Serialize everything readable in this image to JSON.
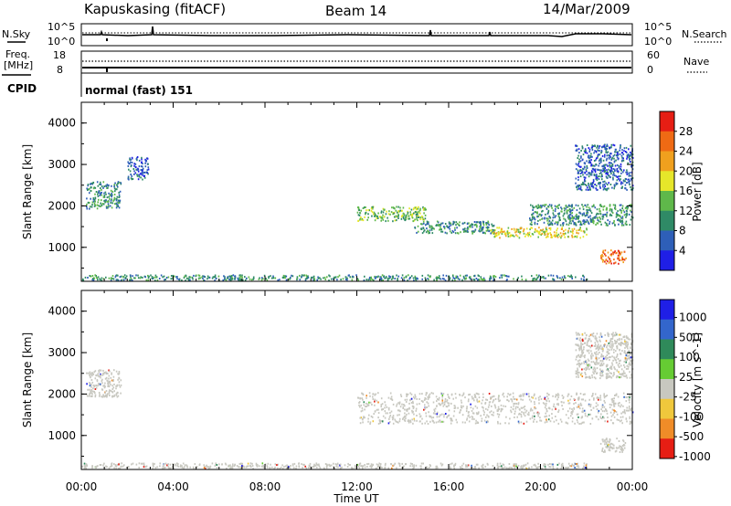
{
  "header": {
    "station": "Kapuskasing (fitACF)",
    "beam": "Beam 14",
    "date": "14/Mar/2009"
  },
  "noise_panel": {
    "left_label": "N.Sky",
    "right_label": "N.Search",
    "left_ticks": [
      "10^5",
      "10^0"
    ],
    "right_ticks": [
      "10^5",
      "10^0"
    ]
  },
  "freq_panel": {
    "left_label_1": "Freq.",
    "left_label_2": "[MHz]",
    "right_label": "Nave",
    "left_ticks": [
      "18",
      "8"
    ],
    "right_ticks": [
      "60",
      "0"
    ],
    "cpid_label": "CPID",
    "cpid_value": "normal (fast) 151"
  },
  "colors": {
    "power": [
      "#1f1fe6",
      "#2e5fb8",
      "#2f8a66",
      "#5fb84a",
      "#e6e62a",
      "#f0a01e",
      "#ef6a14",
      "#e61e14"
    ],
    "velocity": [
      "#1f1fe6",
      "#3366cc",
      "#2f8a5a",
      "#66cc33",
      "#c8c8c0",
      "#f0c83c",
      "#f08c28",
      "#e61e14"
    ],
    "ground": "#bfbfb6"
  },
  "chart_data": [
    {
      "type": "heatmap",
      "name": "power",
      "xlabel": "",
      "ylabel": "Slant Range [km]",
      "xlim": [
        0,
        24
      ],
      "ylim": [
        180,
        4500
      ],
      "y_ticks": [
        "1000",
        "2000",
        "3000",
        "4000"
      ],
      "colorbar_label": "Power [dB]",
      "colorbar_ticks": [
        "4",
        "8",
        "12",
        "16",
        "20",
        "24",
        "28"
      ],
      "regions": [
        {
          "x": [
            0.2,
            1.7
          ],
          "y": [
            1950,
            2600
          ],
          "level": 2
        },
        {
          "x": [
            2.0,
            2.9
          ],
          "y": [
            2650,
            3200
          ],
          "level": 1
        },
        {
          "x": [
            12.0,
            15.0
          ],
          "y": [
            1650,
            2000
          ],
          "level": 3
        },
        {
          "x": [
            14.5,
            18.0
          ],
          "y": [
            1350,
            1650
          ],
          "level": 2
        },
        {
          "x": [
            17.8,
            22.0
          ],
          "y": [
            1250,
            1500
          ],
          "level": 4
        },
        {
          "x": [
            19.5,
            24.0
          ],
          "y": [
            1550,
            2050
          ],
          "level": 2
        },
        {
          "x": [
            21.5,
            24.0
          ],
          "y": [
            2400,
            3500
          ],
          "level": 1
        },
        {
          "x": [
            22.6,
            23.7
          ],
          "y": [
            620,
            950
          ],
          "level": 6
        },
        {
          "x": [
            0.0,
            22.0
          ],
          "y": [
            220,
            350
          ],
          "level": 2
        }
      ]
    },
    {
      "type": "heatmap",
      "name": "velocity",
      "xlabel": "Time UT",
      "ylabel": "Slant Range [km]",
      "xlim": [
        0,
        24
      ],
      "ylim": [
        180,
        4500
      ],
      "x_ticks": [
        "00:00",
        "04:00",
        "08:00",
        "12:00",
        "16:00",
        "20:00",
        "00:00"
      ],
      "y_ticks": [
        "1000",
        "2000",
        "3000",
        "4000"
      ],
      "colorbar_label": "Velocity [m s^-1]",
      "colorbar_ticks": [
        "1000",
        "500",
        "100",
        "25",
        "-25",
        "-100",
        "-500",
        "-1000"
      ],
      "regions": [
        {
          "x": [
            0.2,
            1.7
          ],
          "y": [
            1950,
            2600
          ],
          "level": 4
        },
        {
          "x": [
            12.0,
            24.0
          ],
          "y": [
            1300,
            2050
          ],
          "level": 4
        },
        {
          "x": [
            21.5,
            24.0
          ],
          "y": [
            2400,
            3500
          ],
          "level": 4
        },
        {
          "x": [
            22.6,
            23.7
          ],
          "y": [
            620,
            950
          ],
          "level": 4
        },
        {
          "x": [
            0.0,
            22.0
          ],
          "y": [
            220,
            350
          ],
          "level": 4
        }
      ]
    }
  ]
}
